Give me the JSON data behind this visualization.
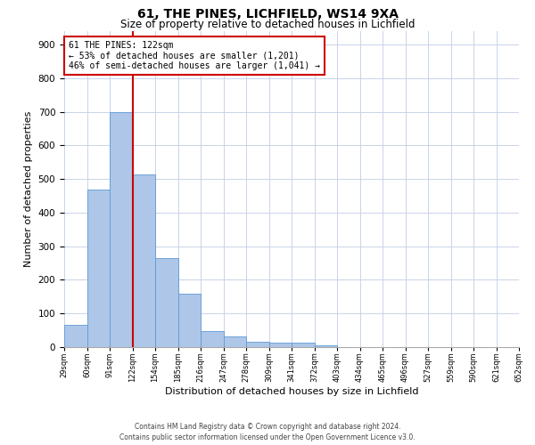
{
  "title1": "61, THE PINES, LICHFIELD, WS14 9XA",
  "title2": "Size of property relative to detached houses in Lichfield",
  "xlabel": "Distribution of detached houses by size in Lichfield",
  "ylabel": "Number of detached properties",
  "bins": [
    "29sqm",
    "60sqm",
    "91sqm",
    "122sqm",
    "154sqm",
    "185sqm",
    "216sqm",
    "247sqm",
    "278sqm",
    "309sqm",
    "341sqm",
    "372sqm",
    "403sqm",
    "434sqm",
    "465sqm",
    "496sqm",
    "527sqm",
    "559sqm",
    "590sqm",
    "621sqm",
    "652sqm"
  ],
  "values": [
    65,
    470,
    700,
    513,
    265,
    160,
    48,
    33,
    15,
    12,
    12,
    4,
    0,
    0,
    0,
    0,
    0,
    0,
    0,
    0
  ],
  "bar_color": "#aec6e8",
  "bar_edge_color": "#5b9bd5",
  "vline_x_idx": 3,
  "vline_color": "#cc0000",
  "annotation_text": "61 THE PINES: 122sqm\n← 53% of detached houses are smaller (1,201)\n46% of semi-detached houses are larger (1,041) →",
  "annotation_box_color": "#ffffff",
  "annotation_box_edge_color": "#cc0000",
  "ylim": [
    0,
    940
  ],
  "yticks": [
    0,
    100,
    200,
    300,
    400,
    500,
    600,
    700,
    800,
    900
  ],
  "footer_line1": "Contains HM Land Registry data © Crown copyright and database right 2024.",
  "footer_line2": "Contains public sector information licensed under the Open Government Licence v3.0.",
  "background_color": "#ffffff",
  "grid_color": "#c8d4e8",
  "title1_fontsize": 10,
  "title2_fontsize": 8.5,
  "xlabel_fontsize": 8,
  "ylabel_fontsize": 8,
  "xtick_fontsize": 6,
  "ytick_fontsize": 7.5,
  "annotation_fontsize": 7,
  "footer_fontsize": 5.5
}
